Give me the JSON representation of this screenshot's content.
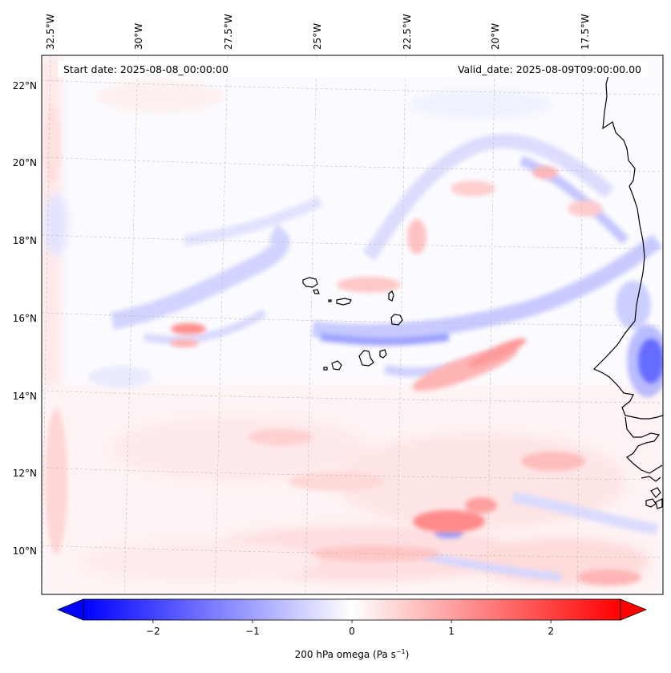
{
  "header": {
    "start_date": "Start date: 2025-08-08_00:00:00",
    "valid_date": "Valid_date: 2025-08-09T09:00:00.00"
  },
  "map": {
    "lon_labels": [
      "32.5°W",
      "30°W",
      "27.5°W",
      "25°W",
      "22.5°W",
      "20°W",
      "17.5°W"
    ],
    "lat_labels": [
      "22°N",
      "20°N",
      "18°N",
      "16°N",
      "14°N",
      "12°N",
      "10°N"
    ],
    "field": "200 hPa omega",
    "extent": {
      "lon": [
        -32.7,
        -15.5
      ],
      "lat": [
        8.8,
        22.8
      ]
    },
    "coastline_color": "#000000"
  },
  "colorbar": {
    "label": "200 hPa omega (Pa s",
    "label_exp": "−1",
    "label_close": ")",
    "ticks": [
      "−2",
      "−1",
      "0",
      "1",
      "2"
    ],
    "tick_values": [
      -2,
      -1,
      0,
      1,
      2
    ],
    "range": [
      -2.7,
      2.7
    ],
    "cmap": "bwr",
    "color_low": "#0000ff",
    "color_mid": "#ffffff",
    "color_high": "#ff0000"
  }
}
